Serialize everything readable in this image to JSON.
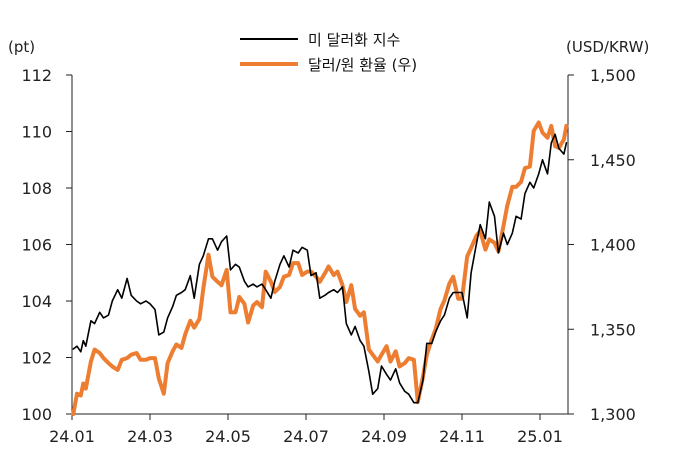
{
  "chart_data": {
    "type": "line",
    "left_unit": "(pt)",
    "right_unit": "(USD/KRW)",
    "legend_position": "top-center",
    "grid": false,
    "x_ticks": [
      "24.01",
      "24.03",
      "24.05",
      "24.07",
      "24.09",
      "24.11",
      "25.01"
    ],
    "y_left": {
      "range": [
        100,
        112
      ],
      "ticks": [
        "100",
        "102",
        "104",
        "106",
        "108",
        "110",
        "112"
      ]
    },
    "y_right": {
      "range": [
        1300,
        1500
      ],
      "ticks": [
        "1,300",
        "1,350",
        "1,400",
        "1,450",
        "1,500"
      ]
    },
    "series": [
      {
        "name": "미 달러화 지수",
        "color": "#000000",
        "axis": "left",
        "points": [
          [
            "24.01.02",
            102.3
          ],
          [
            "24.01.05",
            102.4
          ],
          [
            "24.01.08",
            102.2
          ],
          [
            "24.01.10",
            102.6
          ],
          [
            "24.01.12",
            102.4
          ],
          [
            "24.01.16",
            103.3
          ],
          [
            "24.01.19",
            103.2
          ],
          [
            "24.01.23",
            103.6
          ],
          [
            "24.01.26",
            103.4
          ],
          [
            "24.01.30",
            103.5
          ],
          [
            "24.02.02",
            104.0
          ],
          [
            "24.02.06",
            104.4
          ],
          [
            "24.02.09",
            104.1
          ],
          [
            "24.02.13",
            104.8
          ],
          [
            "24.02.16",
            104.2
          ],
          [
            "24.02.20",
            104.0
          ],
          [
            "24.02.23",
            103.9
          ],
          [
            "24.02.27",
            104.0
          ],
          [
            "24.03.01",
            103.9
          ],
          [
            "24.03.05",
            103.7
          ],
          [
            "24.03.08",
            102.8
          ],
          [
            "24.03.12",
            102.9
          ],
          [
            "24.03.15",
            103.4
          ],
          [
            "24.03.19",
            103.8
          ],
          [
            "24.03.22",
            104.2
          ],
          [
            "24.03.26",
            104.3
          ],
          [
            "24.03.29",
            104.4
          ],
          [
            "24.04.02",
            104.9
          ],
          [
            "24.04.05",
            104.1
          ],
          [
            "24.04.09",
            105.3
          ],
          [
            "24.04.12",
            105.6
          ],
          [
            "24.04.16",
            106.2
          ],
          [
            "24.04.19",
            106.2
          ],
          [
            "24.04.23",
            105.8
          ],
          [
            "24.04.26",
            106.1
          ],
          [
            "24.04.30",
            106.3
          ],
          [
            "24.05.03",
            105.1
          ],
          [
            "24.05.07",
            105.3
          ],
          [
            "24.05.10",
            105.2
          ],
          [
            "24.05.14",
            104.7
          ],
          [
            "24.05.17",
            104.5
          ],
          [
            "24.05.21",
            104.6
          ],
          [
            "24.05.24",
            104.5
          ],
          [
            "24.05.28",
            104.6
          ],
          [
            "24.05.31",
            104.4
          ],
          [
            "24.06.04",
            104.1
          ],
          [
            "24.06.07",
            104.7
          ],
          [
            "24.06.11",
            105.3
          ],
          [
            "24.06.14",
            105.6
          ],
          [
            "24.06.18",
            105.2
          ],
          [
            "24.06.21",
            105.8
          ],
          [
            "24.06.25",
            105.7
          ],
          [
            "24.06.28",
            105.9
          ],
          [
            "24.07.02",
            105.8
          ],
          [
            "24.07.05",
            104.9
          ],
          [
            "24.07.09",
            105.0
          ],
          [
            "24.07.12",
            104.1
          ],
          [
            "24.07.16",
            104.2
          ],
          [
            "24.07.19",
            104.3
          ],
          [
            "24.07.23",
            104.4
          ],
          [
            "24.07.26",
            104.3
          ],
          [
            "24.07.30",
            104.5
          ],
          [
            "24.08.02",
            103.2
          ],
          [
            "24.08.06",
            102.8
          ],
          [
            "24.08.09",
            103.1
          ],
          [
            "24.08.13",
            102.6
          ],
          [
            "24.08.16",
            102.4
          ],
          [
            "24.08.20",
            101.5
          ],
          [
            "24.08.23",
            100.7
          ],
          [
            "24.08.27",
            100.9
          ],
          [
            "24.08.30",
            101.7
          ],
          [
            "24.09.03",
            101.4
          ],
          [
            "24.09.06",
            101.2
          ],
          [
            "24.09.10",
            101.6
          ],
          [
            "24.09.13",
            101.1
          ],
          [
            "24.09.17",
            100.8
          ],
          [
            "24.09.20",
            100.7
          ],
          [
            "24.09.24",
            100.4
          ],
          [
            "24.09.27",
            100.4
          ],
          [
            "24.10.01",
            101.2
          ],
          [
            "24.10.04",
            102.5
          ],
          [
            "24.10.08",
            102.5
          ],
          [
            "24.10.11",
            102.9
          ],
          [
            "24.10.15",
            103.3
          ],
          [
            "24.10.18",
            103.5
          ],
          [
            "24.10.22",
            104.1
          ],
          [
            "24.10.25",
            104.3
          ],
          [
            "24.10.29",
            104.3
          ],
          [
            "24.11.01",
            104.3
          ],
          [
            "24.11.05",
            103.4
          ],
          [
            "24.11.08",
            105.0
          ],
          [
            "24.11.12",
            106.0
          ],
          [
            "24.11.15",
            106.7
          ],
          [
            "24.11.19",
            106.2
          ],
          [
            "24.11.22",
            107.5
          ],
          [
            "24.11.26",
            107.0
          ],
          [
            "24.11.29",
            105.7
          ],
          [
            "24.12.03",
            106.4
          ],
          [
            "24.12.06",
            106.0
          ],
          [
            "24.12.10",
            106.4
          ],
          [
            "24.12.13",
            107.0
          ],
          [
            "24.12.17",
            106.9
          ],
          [
            "24.12.20",
            107.8
          ],
          [
            "24.12.24",
            108.2
          ],
          [
            "24.12.27",
            108.0
          ],
          [
            "24.12.31",
            108.5
          ],
          [
            "25.01.03",
            109.0
          ],
          [
            "25.01.07",
            108.5
          ],
          [
            "25.01.10",
            109.6
          ],
          [
            "25.01.13",
            109.9
          ],
          [
            "25.01.16",
            109.4
          ],
          [
            "25.01.20",
            109.2
          ],
          [
            "25.01.22",
            109.6
          ]
        ]
      },
      {
        "name": "달러/원 환율 (우)",
        "color": "#ED7D31",
        "axis": "right",
        "points": [
          [
            "24.01.02",
            1300
          ],
          [
            "24.01.05",
            1312
          ],
          [
            "24.01.08",
            1311
          ],
          [
            "24.01.10",
            1318
          ],
          [
            "24.01.12",
            1315
          ],
          [
            "24.01.16",
            1331
          ],
          [
            "24.01.19",
            1338
          ],
          [
            "24.01.23",
            1336
          ],
          [
            "24.01.26",
            1333
          ],
          [
            "24.01.30",
            1330
          ],
          [
            "24.02.02",
            1328
          ],
          [
            "24.02.06",
            1326
          ],
          [
            "24.02.09",
            1332
          ],
          [
            "24.02.13",
            1333
          ],
          [
            "24.02.16",
            1335
          ],
          [
            "24.02.20",
            1336
          ],
          [
            "24.02.23",
            1332
          ],
          [
            "24.02.27",
            1332
          ],
          [
            "24.03.01",
            1333
          ],
          [
            "24.03.05",
            1333
          ],
          [
            "24.03.08",
            1321
          ],
          [
            "24.03.12",
            1312
          ],
          [
            "24.03.15",
            1330
          ],
          [
            "24.03.19",
            1337
          ],
          [
            "24.03.22",
            1341
          ],
          [
            "24.03.26",
            1339
          ],
          [
            "24.03.29",
            1347
          ],
          [
            "24.04.02",
            1355
          ],
          [
            "24.04.05",
            1351
          ],
          [
            "24.04.09",
            1356
          ],
          [
            "24.04.12",
            1374
          ],
          [
            "24.04.16",
            1394
          ],
          [
            "24.04.19",
            1381
          ],
          [
            "24.04.23",
            1378
          ],
          [
            "24.04.26",
            1376
          ],
          [
            "24.04.30",
            1385
          ],
          [
            "24.05.03",
            1360
          ],
          [
            "24.05.07",
            1360
          ],
          [
            "24.05.10",
            1369
          ],
          [
            "24.05.14",
            1365
          ],
          [
            "24.05.17",
            1354
          ],
          [
            "24.05.21",
            1364
          ],
          [
            "24.05.24",
            1366
          ],
          [
            "24.05.28",
            1363
          ],
          [
            "24.05.31",
            1384
          ],
          [
            "24.06.04",
            1378
          ],
          [
            "24.06.07",
            1372
          ],
          [
            "24.06.11",
            1375
          ],
          [
            "24.06.14",
            1381
          ],
          [
            "24.06.18",
            1382
          ],
          [
            "24.06.21",
            1389
          ],
          [
            "24.06.25",
            1389
          ],
          [
            "24.06.28",
            1382
          ],
          [
            "24.07.02",
            1384
          ],
          [
            "24.07.05",
            1384
          ],
          [
            "24.07.09",
            1381
          ],
          [
            "24.07.12",
            1378
          ],
          [
            "24.07.16",
            1383
          ],
          [
            "24.07.19",
            1387
          ],
          [
            "24.07.23",
            1382
          ],
          [
            "24.07.26",
            1384
          ],
          [
            "24.07.30",
            1376
          ],
          [
            "24.08.02",
            1366
          ],
          [
            "24.08.06",
            1376
          ],
          [
            "24.08.09",
            1362
          ],
          [
            "24.08.13",
            1358
          ],
          [
            "24.08.16",
            1360
          ],
          [
            "24.08.20",
            1338
          ],
          [
            "24.08.23",
            1335
          ],
          [
            "24.08.27",
            1331
          ],
          [
            "24.08.30",
            1335
          ],
          [
            "24.09.03",
            1340
          ],
          [
            "24.09.06",
            1331
          ],
          [
            "24.09.10",
            1337
          ],
          [
            "24.09.13",
            1328
          ],
          [
            "24.09.17",
            1330
          ],
          [
            "24.09.20",
            1333
          ],
          [
            "24.09.24",
            1332
          ],
          [
            "24.09.27",
            1307
          ],
          [
            "24.10.01",
            1322
          ],
          [
            "24.10.04",
            1335
          ],
          [
            "24.10.08",
            1344
          ],
          [
            "24.10.11",
            1350
          ],
          [
            "24.10.15",
            1362
          ],
          [
            "24.10.18",
            1367
          ],
          [
            "24.10.22",
            1377
          ],
          [
            "24.10.25",
            1381
          ],
          [
            "24.10.29",
            1368
          ],
          [
            "24.11.01",
            1368
          ],
          [
            "24.11.05",
            1393
          ],
          [
            "24.11.08",
            1398
          ],
          [
            "24.11.12",
            1405
          ],
          [
            "24.11.15",
            1408
          ],
          [
            "24.11.19",
            1397
          ],
          [
            "24.11.22",
            1403
          ],
          [
            "24.11.26",
            1401
          ],
          [
            "24.11.29",
            1396
          ],
          [
            "24.12.03",
            1411
          ],
          [
            "24.12.06",
            1423
          ],
          [
            "24.12.10",
            1434
          ],
          [
            "24.12.13",
            1434
          ],
          [
            "24.12.17",
            1437
          ],
          [
            "24.12.20",
            1445
          ],
          [
            "24.12.24",
            1446
          ],
          [
            "24.12.27",
            1467
          ],
          [
            "24.12.31",
            1472
          ],
          [
            "25.01.03",
            1466
          ],
          [
            "25.01.07",
            1463
          ],
          [
            "25.01.10",
            1470
          ],
          [
            "25.01.13",
            1458
          ],
          [
            "25.01.16",
            1457
          ],
          [
            "25.01.20",
            1462
          ],
          [
            "25.01.22",
            1470
          ]
        ]
      }
    ]
  }
}
